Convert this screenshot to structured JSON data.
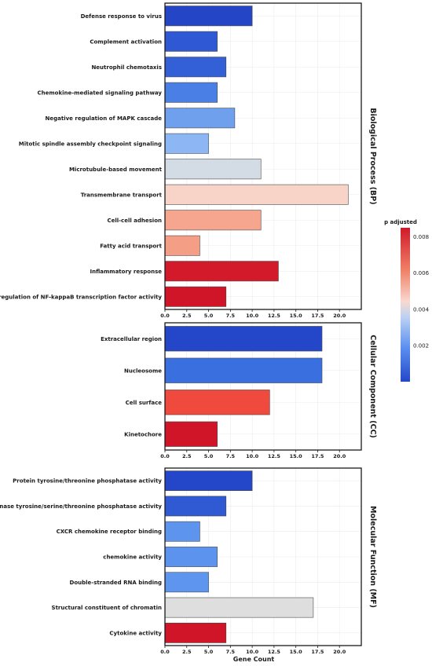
{
  "chart_data": {
    "type": "bar",
    "orientation": "horizontal",
    "xlabel": "Gene Count",
    "x_ticks": [
      "0.0",
      "2.5",
      "5.0",
      "7.5",
      "10.0",
      "12.5",
      "15.0",
      "17.5",
      "20.0"
    ],
    "xlim": [
      0,
      22.5
    ],
    "grid": true,
    "legend": {
      "title": "p adjusted",
      "ticks": [
        "0.002",
        "0.004",
        "0.006",
        "0.008"
      ],
      "tick_values": [
        0.002,
        0.004,
        0.006,
        0.008
      ],
      "range": [
        0.0,
        0.0085
      ],
      "placement": "right",
      "colors": [
        "#2447c9",
        "#5b8ff0",
        "#bcd2f2",
        "#f8d9d0",
        "#f08268",
        "#d01929"
      ]
    },
    "panels": [
      {
        "strip": "Biological Process (BP)",
        "categories": [
          "Defense response to virus",
          "Complement activation",
          "Neutrophil chemotaxis",
          "Chemokine-mediated signaling pathway",
          "Negative regulation of MAPK cascade",
          "Mitotic spindle assembly checkpoint signaling",
          "Microtubule-based movement",
          "Transmembrane transport",
          "Cell-cell adhesion",
          "Fatty acid transport",
          "Inflammatory response",
          "Positive regulation of NF-kappaB transcription factor activity"
        ],
        "values": [
          10,
          6,
          7,
          6,
          8,
          5,
          11,
          21,
          11,
          4,
          13,
          7
        ],
        "colors": [
          "#2445c6",
          "#2f59d4",
          "#3360d6",
          "#4a7fe6",
          "#6ea0ee",
          "#8db7f4",
          "#d3dbe5",
          "#f8d3c8",
          "#f6a58f",
          "#f59e86",
          "#d31a2b",
          "#d01528"
        ]
      },
      {
        "strip": "Cellular Component (CC)",
        "categories": [
          "Extracellular region",
          "Nucleosome",
          "Cell surface",
          "Kinetochore"
        ],
        "values": [
          18,
          18,
          12,
          6
        ],
        "colors": [
          "#2447c9",
          "#3a6fe0",
          "#ef4a3d",
          "#d01528"
        ]
      },
      {
        "strip": "Molecular Function (MF)",
        "categories": [
          "Protein tyrosine/threonine phosphatase activity",
          "MAP kinase tyrosine/serine/threonine phosphatase activity",
          "CXCR chemokine receptor binding",
          "chemokine activity",
          "Double-stranded RNA binding",
          "Structural constituent of chromatin",
          "Cytokine activity"
        ],
        "values": [
          10,
          7,
          4,
          6,
          5,
          17,
          7
        ],
        "colors": [
          "#2447c9",
          "#3059d4",
          "#5d94ee",
          "#5b93ee",
          "#5d95ef",
          "#dedede",
          "#d01528"
        ]
      }
    ]
  }
}
